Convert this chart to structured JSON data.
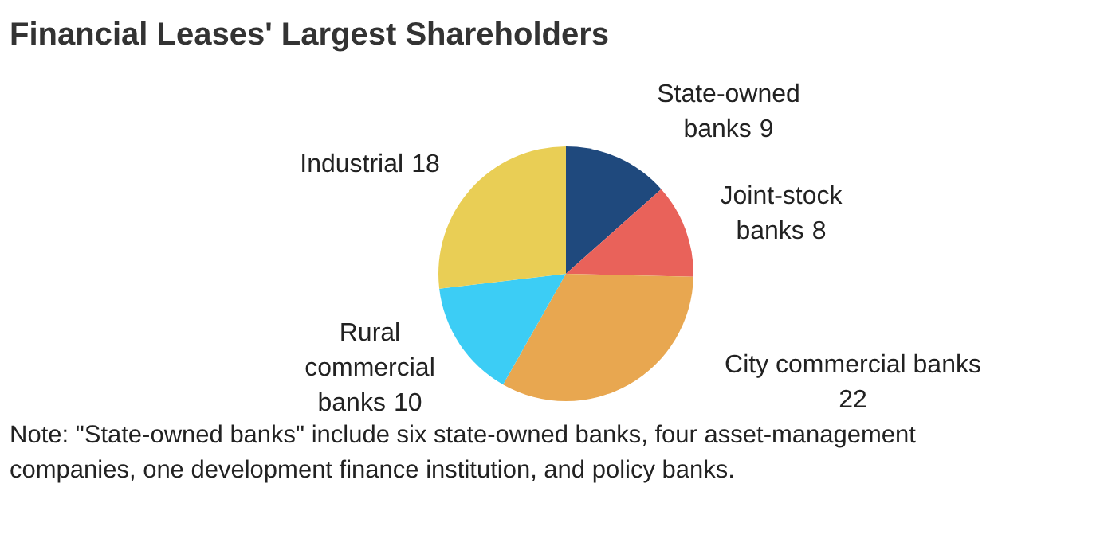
{
  "chart_data": {
    "type": "pie",
    "title": "Financial Leases' Largest Shareholders",
    "categories": [
      "State-owned banks",
      "Joint-stock banks",
      "City commercial banks",
      "Rural commercial banks",
      "Industrial"
    ],
    "values": [
      9,
      8,
      22,
      10,
      18
    ],
    "colors": [
      "#1f497d",
      "#e9625a",
      "#e8a750",
      "#3ccdf5",
      "#e9ce55"
    ],
    "data_labels": true,
    "annotations": [
      "Note: \"State-owned banks\" include six state-owned banks, four asset-management companies, one development finance institution, and policy banks."
    ]
  }
}
